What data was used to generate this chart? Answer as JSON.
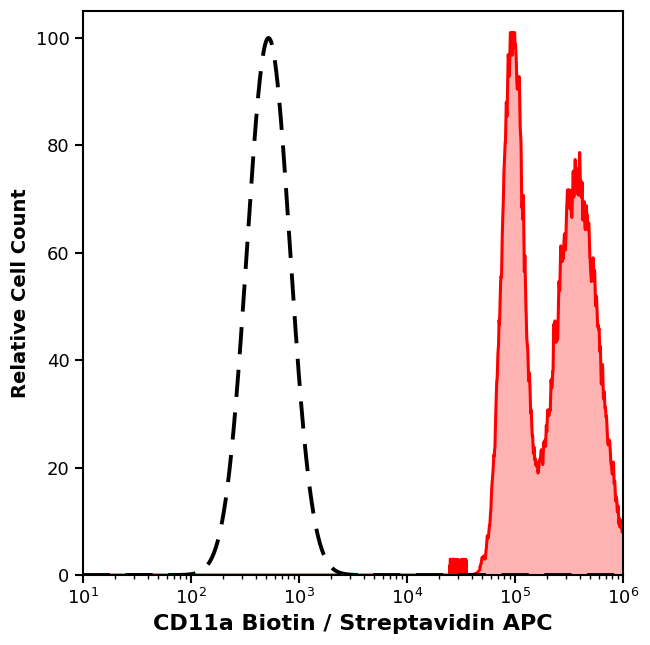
{
  "title": "",
  "xlabel": "CD11a Biotin / Streptavidin APC",
  "ylabel": "Relative Cell Count",
  "xlim": [
    10,
    1000000
  ],
  "ylim": [
    0,
    105
  ],
  "yticks": [
    0,
    20,
    40,
    60,
    80,
    100
  ],
  "background_color": "#ffffff",
  "plot_bg_color": "#ffffff",
  "dashed_color": "#000000",
  "red_fill_color": "#ff0000",
  "red_fill_alpha": 0.3,
  "dashed_peak_log": 2.72,
  "dashed_sigma": 0.2,
  "red_peak1_log": 4.98,
  "red_peak1_height": 100,
  "red_peak1_sigma": 0.1,
  "red_valley_log": 5.2,
  "red_valley_height": 28,
  "red_peak2_log": 5.58,
  "red_peak2_height": 74,
  "red_peak2_sigma": 0.2,
  "red_start_log": 4.55,
  "xlabel_fontsize": 16,
  "ylabel_fontsize": 14,
  "tick_fontsize": 13,
  "line_width": 2.2,
  "dash_linewidth": 2.8
}
